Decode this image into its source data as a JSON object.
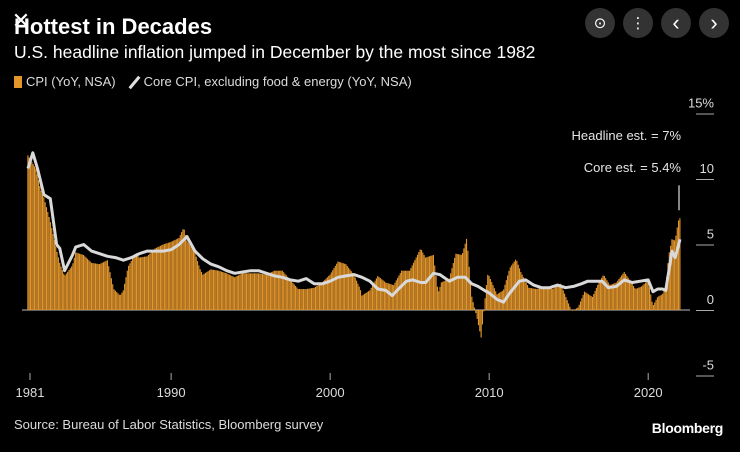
{
  "window": {
    "close_glyph": "✕",
    "controls": [
      {
        "name": "lens-icon",
        "glyph": "⊙"
      },
      {
        "name": "more-options-icon",
        "glyph": "⋮"
      },
      {
        "name": "previous-icon",
        "glyph": "‹"
      },
      {
        "name": "next-icon",
        "glyph": "›"
      }
    ]
  },
  "header": {
    "title": "Hottest in Decades",
    "subtitle": "U.S. headline inflation jumped in December by the most since 1982"
  },
  "legend": {
    "cpi": "CPI (YoY, NSA)",
    "core": "Core CPI, excluding food & energy (YoY, NSA)"
  },
  "annotations": {
    "headline_est": "Headline est. = 7%",
    "core_est": "Core est. = 5.4%"
  },
  "footer": {
    "source": "Source: Bureau of Labor Statistics, Bloomberg survey",
    "brand": "Bloomberg"
  },
  "colors": {
    "cpi_bar": "#e3962c",
    "core_line": "#d9d9d9",
    "axis": "#aaaaaa"
  },
  "chart_data": {
    "type": "bar",
    "title": "Hottest in Decades",
    "subtitle": "U.S. headline inflation jumped in December by the most since 1982",
    "x_ticks": [
      1981,
      1990,
      2000,
      2010,
      2020
    ],
    "y_ticks": [
      "15%",
      "10",
      "5",
      "0",
      "-5"
    ],
    "ylim": [
      -5,
      15
    ],
    "xlim": [
      1981,
      2022
    ],
    "series": [
      {
        "name": "CPI (YoY, NSA)",
        "kind": "bar",
        "points": [
          [
            1981.0,
            11.8
          ],
          [
            1981.5,
            10.8
          ],
          [
            1981.8,
            9.2
          ],
          [
            1982.0,
            8.6
          ],
          [
            1982.4,
            6.8
          ],
          [
            1982.8,
            4.6
          ],
          [
            1983.0,
            3.6
          ],
          [
            1983.3,
            2.6
          ],
          [
            1983.8,
            3.4
          ],
          [
            1984.0,
            4.4
          ],
          [
            1984.5,
            4.2
          ],
          [
            1985.0,
            3.6
          ],
          [
            1985.5,
            3.5
          ],
          [
            1986.0,
            3.8
          ],
          [
            1986.4,
            1.6
          ],
          [
            1986.8,
            1.1
          ],
          [
            1987.0,
            1.5
          ],
          [
            1987.3,
            3.3
          ],
          [
            1987.8,
            4.4
          ],
          [
            1988.0,
            4.0
          ],
          [
            1988.5,
            4.1
          ],
          [
            1989.0,
            4.7
          ],
          [
            1989.5,
            5.0
          ],
          [
            1990.0,
            5.2
          ],
          [
            1990.5,
            5.5
          ],
          [
            1990.8,
            6.3
          ],
          [
            1991.0,
            5.3
          ],
          [
            1991.5,
            4.4
          ],
          [
            1991.8,
            3.2
          ],
          [
            1992.0,
            2.7
          ],
          [
            1992.5,
            3.1
          ],
          [
            1993.0,
            3.0
          ],
          [
            1993.5,
            2.8
          ],
          [
            1994.0,
            2.5
          ],
          [
            1994.5,
            2.8
          ],
          [
            1995.0,
            2.8
          ],
          [
            1995.5,
            2.8
          ],
          [
            1996.0,
            2.7
          ],
          [
            1996.5,
            3.0
          ],
          [
            1997.0,
            3.0
          ],
          [
            1997.5,
            2.3
          ],
          [
            1998.0,
            1.6
          ],
          [
            1998.5,
            1.6
          ],
          [
            1999.0,
            1.7
          ],
          [
            1999.5,
            2.1
          ],
          [
            2000.0,
            2.7
          ],
          [
            2000.5,
            3.7
          ],
          [
            2001.0,
            3.5
          ],
          [
            2001.5,
            2.7
          ],
          [
            2001.9,
            1.6
          ],
          [
            2002.0,
            1.1
          ],
          [
            2002.5,
            1.5
          ],
          [
            2003.0,
            2.6
          ],
          [
            2003.5,
            2.1
          ],
          [
            2004.0,
            1.9
          ],
          [
            2004.5,
            3.0
          ],
          [
            2005.0,
            3.0
          ],
          [
            2005.7,
            4.7
          ],
          [
            2006.0,
            4.0
          ],
          [
            2006.5,
            4.2
          ],
          [
            2006.8,
            1.3
          ],
          [
            2007.0,
            2.1
          ],
          [
            2007.5,
            2.4
          ],
          [
            2007.9,
            4.3
          ],
          [
            2008.3,
            4.2
          ],
          [
            2008.6,
            5.5
          ],
          [
            2008.9,
            1.1
          ],
          [
            2009.2,
            -0.4
          ],
          [
            2009.5,
            -2.1
          ],
          [
            2009.9,
            2.7
          ],
          [
            2010.0,
            2.6
          ],
          [
            2010.5,
            1.2
          ],
          [
            2010.9,
            1.5
          ],
          [
            2011.3,
            3.2
          ],
          [
            2011.7,
            3.9
          ],
          [
            2012.0,
            2.9
          ],
          [
            2012.5,
            1.7
          ],
          [
            2013.0,
            1.6
          ],
          [
            2013.5,
            1.8
          ],
          [
            2014.0,
            1.6
          ],
          [
            2014.5,
            2.0
          ],
          [
            2014.9,
            0.8
          ],
          [
            2015.2,
            -0.1
          ],
          [
            2015.6,
            0.2
          ],
          [
            2016.0,
            1.4
          ],
          [
            2016.5,
            1.0
          ],
          [
            2016.9,
            2.1
          ],
          [
            2017.2,
            2.7
          ],
          [
            2017.6,
            1.9
          ],
          [
            2018.0,
            2.1
          ],
          [
            2018.5,
            2.9
          ],
          [
            2018.9,
            2.2
          ],
          [
            2019.2,
            1.6
          ],
          [
            2019.6,
            1.8
          ],
          [
            2020.0,
            2.3
          ],
          [
            2020.3,
            0.3
          ],
          [
            2020.6,
            1.0
          ],
          [
            2020.9,
            1.2
          ],
          [
            2021.1,
            1.7
          ],
          [
            2021.3,
            4.2
          ],
          [
            2021.5,
            5.4
          ],
          [
            2021.7,
            5.3
          ],
          [
            2021.9,
            6.8
          ],
          [
            2022.0,
            7.0
          ]
        ]
      },
      {
        "name": "Core CPI, excluding food & energy (YoY, NSA)",
        "kind": "line",
        "points": [
          [
            1981.0,
            10.8
          ],
          [
            1981.3,
            12.0
          ],
          [
            1981.6,
            10.8
          ],
          [
            1982.0,
            8.8
          ],
          [
            1982.4,
            8.5
          ],
          [
            1982.8,
            5.0
          ],
          [
            1983.0,
            4.7
          ],
          [
            1983.3,
            3.0
          ],
          [
            1983.8,
            4.2
          ],
          [
            1984.0,
            4.8
          ],
          [
            1984.5,
            5.0
          ],
          [
            1985.0,
            4.5
          ],
          [
            1985.5,
            4.3
          ],
          [
            1986.0,
            4.1
          ],
          [
            1986.5,
            4.0
          ],
          [
            1987.0,
            3.8
          ],
          [
            1987.5,
            4.0
          ],
          [
            1988.0,
            4.3
          ],
          [
            1988.5,
            4.5
          ],
          [
            1989.0,
            4.5
          ],
          [
            1989.5,
            4.5
          ],
          [
            1990.0,
            4.6
          ],
          [
            1990.5,
            5.0
          ],
          [
            1991.0,
            5.6
          ],
          [
            1991.5,
            4.5
          ],
          [
            1992.0,
            3.9
          ],
          [
            1992.5,
            3.5
          ],
          [
            1993.0,
            3.3
          ],
          [
            1993.5,
            3.0
          ],
          [
            1994.0,
            2.8
          ],
          [
            1994.5,
            2.9
          ],
          [
            1995.0,
            3.0
          ],
          [
            1995.5,
            3.0
          ],
          [
            1996.0,
            2.8
          ],
          [
            1996.5,
            2.6
          ],
          [
            1997.0,
            2.5
          ],
          [
            1997.5,
            2.3
          ],
          [
            1998.0,
            2.2
          ],
          [
            1998.5,
            2.4
          ],
          [
            1999.0,
            2.0
          ],
          [
            1999.5,
            2.0
          ],
          [
            2000.0,
            2.2
          ],
          [
            2000.5,
            2.5
          ],
          [
            2001.0,
            2.6
          ],
          [
            2001.5,
            2.7
          ],
          [
            2002.0,
            2.5
          ],
          [
            2002.5,
            2.2
          ],
          [
            2003.0,
            1.6
          ],
          [
            2003.5,
            1.5
          ],
          [
            2003.9,
            1.1
          ],
          [
            2004.3,
            1.6
          ],
          [
            2004.8,
            2.2
          ],
          [
            2005.2,
            2.3
          ],
          [
            2005.7,
            2.1
          ],
          [
            2006.0,
            2.1
          ],
          [
            2006.5,
            2.8
          ],
          [
            2006.9,
            2.7
          ],
          [
            2007.5,
            2.2
          ],
          [
            2008.0,
            2.5
          ],
          [
            2008.5,
            2.5
          ],
          [
            2008.9,
            2.0
          ],
          [
            2009.3,
            1.8
          ],
          [
            2009.7,
            1.5
          ],
          [
            2010.0,
            1.3
          ],
          [
            2010.5,
            0.8
          ],
          [
            2010.9,
            0.6
          ],
          [
            2011.3,
            1.3
          ],
          [
            2011.9,
            2.2
          ],
          [
            2012.3,
            2.3
          ],
          [
            2012.8,
            1.9
          ],
          [
            2013.3,
            1.7
          ],
          [
            2013.8,
            1.7
          ],
          [
            2014.3,
            1.9
          ],
          [
            2014.8,
            1.7
          ],
          [
            2015.3,
            1.8
          ],
          [
            2015.8,
            2.0
          ],
          [
            2016.2,
            2.2
          ],
          [
            2016.7,
            2.2
          ],
          [
            2017.1,
            2.2
          ],
          [
            2017.5,
            1.7
          ],
          [
            2018.0,
            1.8
          ],
          [
            2018.5,
            2.3
          ],
          [
            2019.0,
            2.1
          ],
          [
            2019.5,
            2.2
          ],
          [
            2020.0,
            2.3
          ],
          [
            2020.3,
            1.4
          ],
          [
            2020.6,
            1.6
          ],
          [
            2020.9,
            1.6
          ],
          [
            2021.1,
            1.5
          ],
          [
            2021.3,
            3.0
          ],
          [
            2021.5,
            4.5
          ],
          [
            2021.7,
            4.0
          ],
          [
            2021.9,
            4.9
          ],
          [
            2022.0,
            5.4
          ]
        ]
      }
    ]
  }
}
